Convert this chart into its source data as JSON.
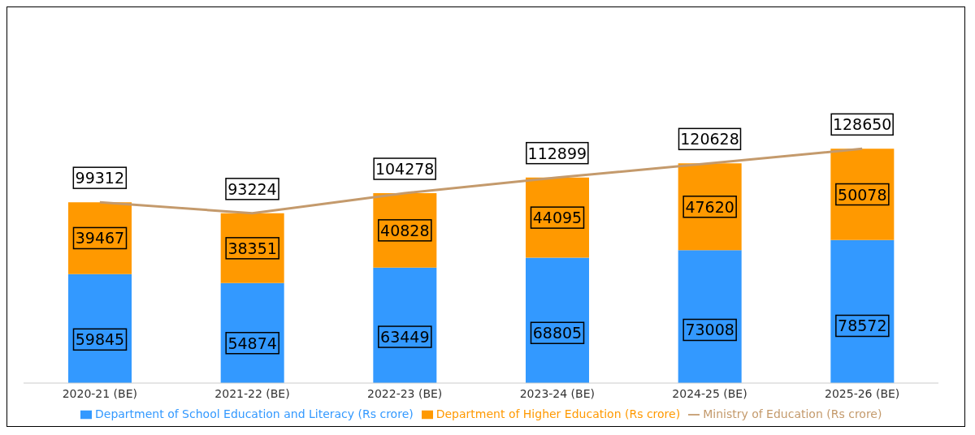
{
  "chart_data": {
    "type": "bar",
    "stacked": true,
    "categories": [
      "2020-21 (BE)",
      "2021-22 (BE)",
      "2022-23 (BE)",
      "2023-24 (BE)",
      "2024-25 (BE)",
      "2025-26 (BE)"
    ],
    "series": [
      {
        "name": "Department of School Education and Literacy (Rs crore)",
        "color": "#3399ff",
        "values": [
          59845,
          54874,
          63449,
          68805,
          73008,
          78572
        ]
      },
      {
        "name": "Department of Higher Education (Rs crore)",
        "color": "#ff9900",
        "values": [
          39467,
          38351,
          40828,
          44095,
          47620,
          50078
        ]
      },
      {
        "name": "Ministry of Education (Rs crore)",
        "type": "line",
        "color": "#c49a6c",
        "values": [
          99312,
          93224,
          104278,
          112899,
          120628,
          128650
        ]
      }
    ],
    "data_labels": true,
    "legend": "bottom",
    "grid": false
  }
}
